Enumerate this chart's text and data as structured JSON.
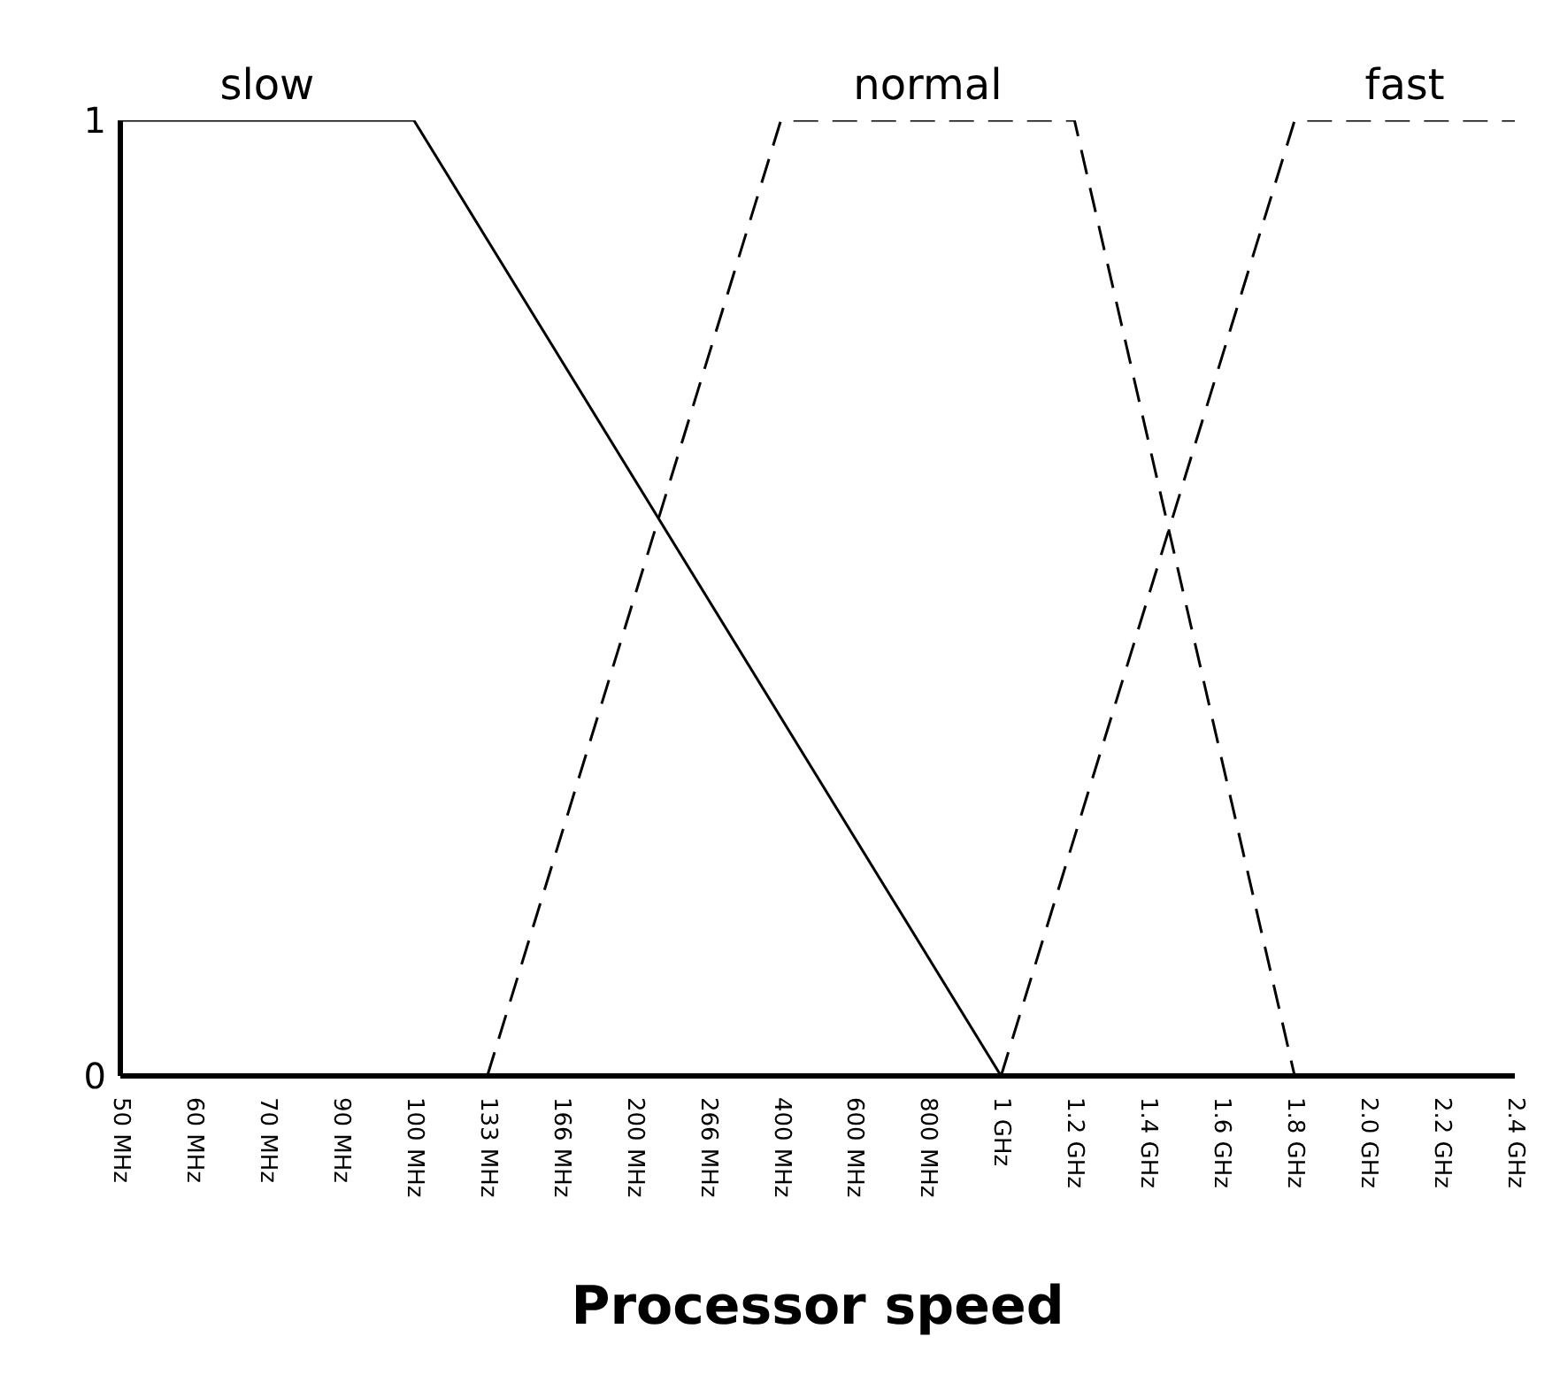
{
  "chart_data": {
    "type": "line",
    "xlabel": "Processor speed",
    "categories": [
      "50 MHz",
      "60 MHz",
      "70 MHz",
      "90 MHz",
      "100 MHz",
      "133 MHz",
      "166 MHz",
      "200 MHz",
      "266 MHz",
      "400 MHz",
      "600 MHz",
      "800 MHz",
      "1 GHz",
      "1.2 GHz",
      "1.4 GHz",
      "1.6 GHz",
      "1.8 GHz",
      "2.0 GHz",
      "2.2 GHz",
      "2.4 GHz"
    ],
    "series": [
      {
        "name": "slow",
        "color": "#000000",
        "line_style": "solid",
        "values": [
          1,
          null,
          null,
          null,
          1,
          null,
          null,
          null,
          null,
          null,
          null,
          null,
          0,
          null,
          null,
          null,
          null,
          null,
          null,
          null
        ]
      },
      {
        "name": "normal",
        "color": "#000000",
        "line_style": "dashed",
        "values": [
          null,
          null,
          null,
          null,
          null,
          0,
          null,
          null,
          null,
          1,
          null,
          null,
          null,
          1,
          null,
          null,
          0,
          null,
          null,
          null
        ]
      },
      {
        "name": "fast",
        "color": "#000000",
        "line_style": "dashed",
        "values": [
          null,
          null,
          null,
          null,
          null,
          null,
          null,
          null,
          null,
          null,
          null,
          null,
          0,
          null,
          null,
          null,
          1,
          null,
          null,
          1
        ]
      }
    ],
    "ylim": [
      0,
      1
    ],
    "yticks": [
      0,
      1
    ],
    "grid": false,
    "legend": false,
    "marker": "none"
  }
}
